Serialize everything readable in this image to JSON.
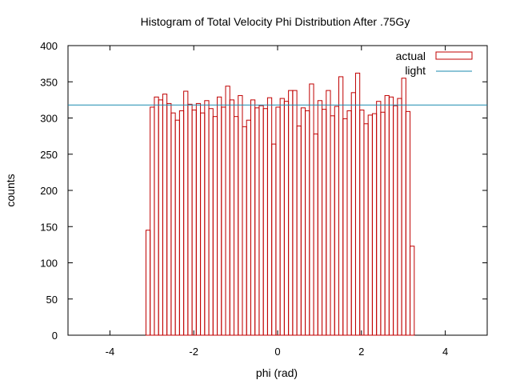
{
  "chart_data": {
    "type": "bar",
    "title": "Histogram of Total Velocity Phi Distribution After .75Gy",
    "xlabel": "phi (rad)",
    "ylabel": "counts",
    "xlim": [
      -5,
      5
    ],
    "ylim": [
      0,
      400
    ],
    "xticks": [
      -4,
      -2,
      0,
      2,
      4
    ],
    "yticks": [
      0,
      50,
      100,
      150,
      200,
      250,
      300,
      350,
      400
    ],
    "grid": false,
    "legend_position": "top-right",
    "bin_width": 0.1,
    "x_start": -3.14,
    "series": [
      {
        "name": "actual",
        "style": "histogram-outline",
        "color": "#c00000",
        "values": [
          145,
          315,
          329,
          325,
          333,
          320,
          307,
          297,
          310,
          337,
          319,
          311,
          320,
          307,
          324,
          313,
          302,
          329,
          315,
          344,
          325,
          302,
          331,
          288,
          297,
          325,
          314,
          317,
          313,
          328,
          264,
          315,
          327,
          323,
          338,
          338,
          289,
          314,
          310,
          347,
          278,
          324,
          312,
          338,
          303,
          316,
          357,
          299,
          310,
          335,
          362,
          311,
          292,
          304,
          306,
          323,
          308,
          331,
          329,
          317,
          327,
          355,
          309,
          123
        ]
      },
      {
        "name": "light",
        "style": "horizontal-line",
        "color": "#1a8aaf",
        "value": 318
      }
    ]
  }
}
